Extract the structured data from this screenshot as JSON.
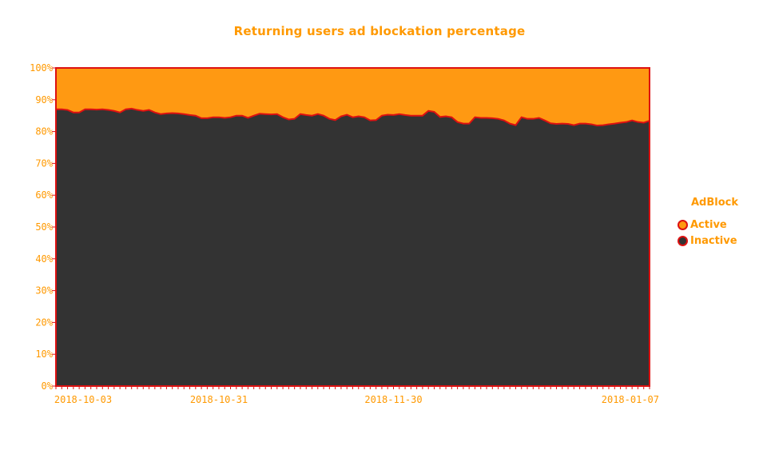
{
  "chart_data": {
    "type": "area",
    "stacked": true,
    "percent": true,
    "title": "Returning users ad blockation percentage",
    "xlabel": "",
    "ylabel": "",
    "ylim": [
      0,
      100
    ],
    "yticks": [
      "0%",
      "10%",
      "20%",
      "30%",
      "40%",
      "50%",
      "60%",
      "70%",
      "80%",
      "90%",
      "100%"
    ],
    "xticks": [
      "2018-10-03",
      "2018-10-31",
      "2018-11-30",
      "2018-01-07"
    ],
    "xtick_index": [
      0,
      28,
      58,
      97
    ],
    "grid": false,
    "legend": {
      "title": "AdBlock",
      "position": "right",
      "items": [
        "Active",
        "Inactive"
      ]
    },
    "colors": {
      "active": "#ff9912",
      "inactive": "#333333",
      "outline": "#dd1111",
      "text": "#ff9900"
    },
    "series": [
      {
        "name": "Inactive",
        "values": [
          87.0,
          87.0,
          86.8,
          86.0,
          86.0,
          87.0,
          87.0,
          86.9,
          87.0,
          86.8,
          86.5,
          86.0,
          87.0,
          87.2,
          86.8,
          86.5,
          86.8,
          86.0,
          85.5,
          85.7,
          85.8,
          85.7,
          85.5,
          85.2,
          85.0,
          84.2,
          84.2,
          84.5,
          84.5,
          84.3,
          84.5,
          85.0,
          85.0,
          84.3,
          85.0,
          85.6,
          85.5,
          85.4,
          85.5,
          84.5,
          83.8,
          84.0,
          85.5,
          85.2,
          85.0,
          85.5,
          85.0,
          84.0,
          83.6,
          84.8,
          85.3,
          84.5,
          84.8,
          84.5,
          83.5,
          83.6,
          85.0,
          85.3,
          85.2,
          85.5,
          85.2,
          85.0,
          85.0,
          85.0,
          86.5,
          86.2,
          84.6,
          84.8,
          84.5,
          83.0,
          82.5,
          82.5,
          84.5,
          84.3,
          84.3,
          84.2,
          84.0,
          83.5,
          82.5,
          82.0,
          84.5,
          84.0,
          84.0,
          84.3,
          83.5,
          82.6,
          82.4,
          82.5,
          82.4,
          82.0,
          82.5,
          82.5,
          82.3,
          81.9,
          82.0,
          82.3,
          82.5,
          82.8,
          83.0,
          83.5,
          83.0,
          82.8,
          83.4
        ]
      },
      {
        "name": "Active",
        "values": [
          13.0,
          13.0,
          13.2,
          14.0,
          14.0,
          13.0,
          13.0,
          13.1,
          13.0,
          13.2,
          13.5,
          14.0,
          13.0,
          12.8,
          13.2,
          13.5,
          13.2,
          14.0,
          14.5,
          14.3,
          14.2,
          14.3,
          14.5,
          14.8,
          15.0,
          15.8,
          15.8,
          15.5,
          15.5,
          15.7,
          15.5,
          15.0,
          15.0,
          15.7,
          15.0,
          14.4,
          14.5,
          14.6,
          14.5,
          15.5,
          16.2,
          16.0,
          14.5,
          14.8,
          15.0,
          14.5,
          15.0,
          16.0,
          16.4,
          15.2,
          14.7,
          15.5,
          15.2,
          15.5,
          16.5,
          16.4,
          15.0,
          14.7,
          14.8,
          14.5,
          14.8,
          15.0,
          15.0,
          15.0,
          13.5,
          13.8,
          15.4,
          15.2,
          15.5,
          17.0,
          17.5,
          17.5,
          15.5,
          15.7,
          15.7,
          15.8,
          16.0,
          16.5,
          17.5,
          18.0,
          15.5,
          16.0,
          16.0,
          15.7,
          16.5,
          17.4,
          17.6,
          17.5,
          17.6,
          18.0,
          17.5,
          17.5,
          17.7,
          18.1,
          18.0,
          17.7,
          17.5,
          17.2,
          17.0,
          16.5,
          17.0,
          17.2,
          16.6
        ]
      }
    ]
  }
}
